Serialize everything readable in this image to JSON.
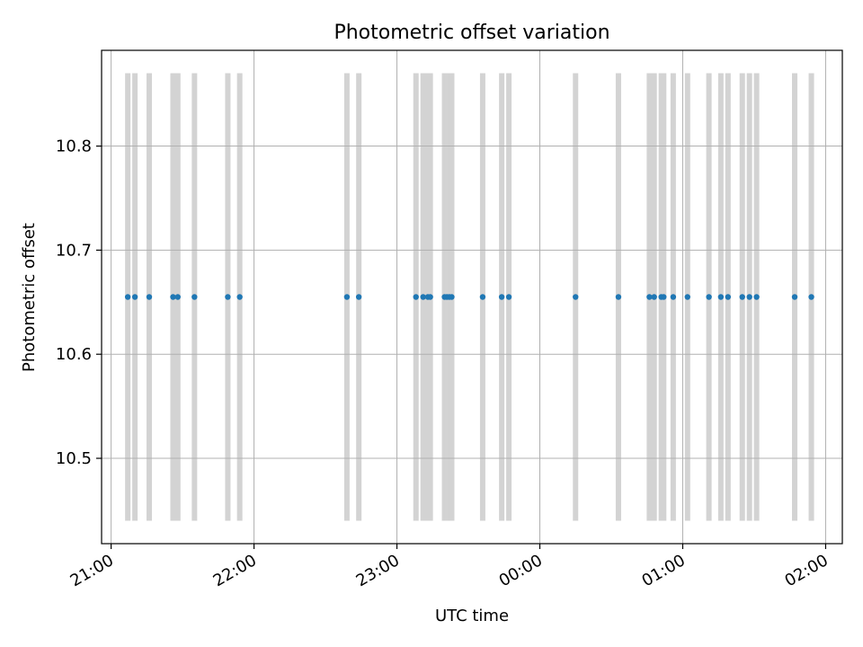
{
  "chart_data": {
    "type": "scatter",
    "title": "Photometric offset variation",
    "xlabel": "UTC time",
    "ylabel": "Photometric offset",
    "x_unit": "UTC time (HH:MM, Day 1 21:00 to Day 2 02:00)",
    "xlim": [
      "20:56",
      "02:07"
    ],
    "ylim": [
      10.418,
      10.892
    ],
    "x_ticks": [
      "21:00",
      "22:00",
      "23:00",
      "00:00",
      "01:00",
      "02:00"
    ],
    "y_ticks": [
      "10.5",
      "10.6",
      "10.7",
      "10.8"
    ],
    "y_tick_values": [
      10.5,
      10.6,
      10.7,
      10.8
    ],
    "grid": true,
    "marker_color": "#1f77b4",
    "band_color": "#d3d3d3",
    "band_range": [
      10.44,
      10.87
    ],
    "series": [
      {
        "x": [
          "21:07",
          "21:10",
          "21:16",
          "21:26",
          "21:28",
          "21:35",
          "21:49",
          "21:54",
          "22:39",
          "22:44",
          "23:08",
          "23:11",
          "23:13",
          "23:14",
          "23:20",
          "23:21",
          "23:22",
          "23:23",
          "23:36",
          "23:44",
          "23:47",
          "00:15",
          "00:33",
          "00:46",
          "00:48",
          "00:51",
          "00:52",
          "00:56",
          "01:02",
          "01:11",
          "01:16",
          "01:19",
          "01:25",
          "01:28",
          "01:31",
          "01:47",
          "01:54"
        ],
        "y": [
          10.655,
          10.655,
          10.655,
          10.655,
          10.655,
          10.655,
          10.655,
          10.655,
          10.655,
          10.655,
          10.655,
          10.655,
          10.655,
          10.655,
          10.655,
          10.655,
          10.655,
          10.655,
          10.655,
          10.655,
          10.655,
          10.655,
          10.655,
          10.655,
          10.655,
          10.655,
          10.655,
          10.655,
          10.655,
          10.655,
          10.655,
          10.655,
          10.655,
          10.655,
          10.655,
          10.655,
          10.655
        ]
      }
    ]
  }
}
